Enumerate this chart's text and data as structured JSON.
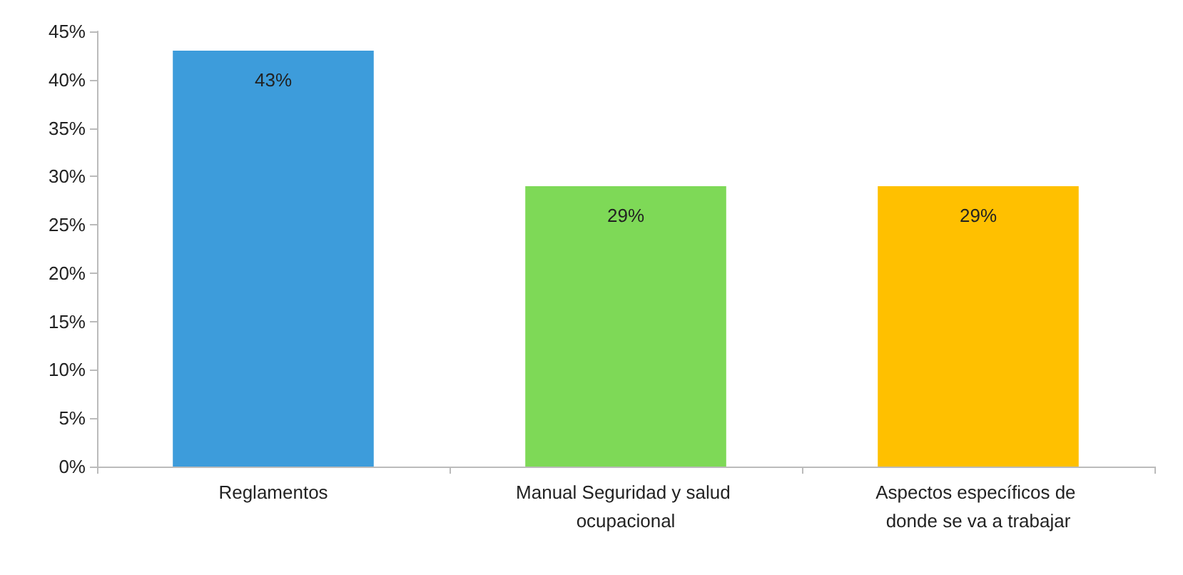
{
  "chart_data": {
    "type": "bar",
    "categories": [
      "Reglamentos",
      "Manual Seguridad y salud ocupacional",
      "Aspectos específicos de donde se va a trabajar"
    ],
    "values": [
      43,
      29,
      29
    ],
    "colors": [
      "#3d9cdb",
      "#7ed957",
      "#ffc000"
    ],
    "value_labels": [
      "43%",
      "29%",
      "29%"
    ],
    "ylim": [
      0,
      45
    ],
    "yticks": [
      {
        "value": 0,
        "label": "0%"
      },
      {
        "value": 5,
        "label": "5%"
      },
      {
        "value": 10,
        "label": "10%"
      },
      {
        "value": 15,
        "label": "15%"
      },
      {
        "value": 20,
        "label": "20%"
      },
      {
        "value": 25,
        "label": "25%"
      },
      {
        "value": 30,
        "label": "30%"
      },
      {
        "value": 35,
        "label": "35%"
      },
      {
        "value": 40,
        "label": "40%"
      },
      {
        "value": 45,
        "label": "45%"
      }
    ],
    "grid": false
  }
}
